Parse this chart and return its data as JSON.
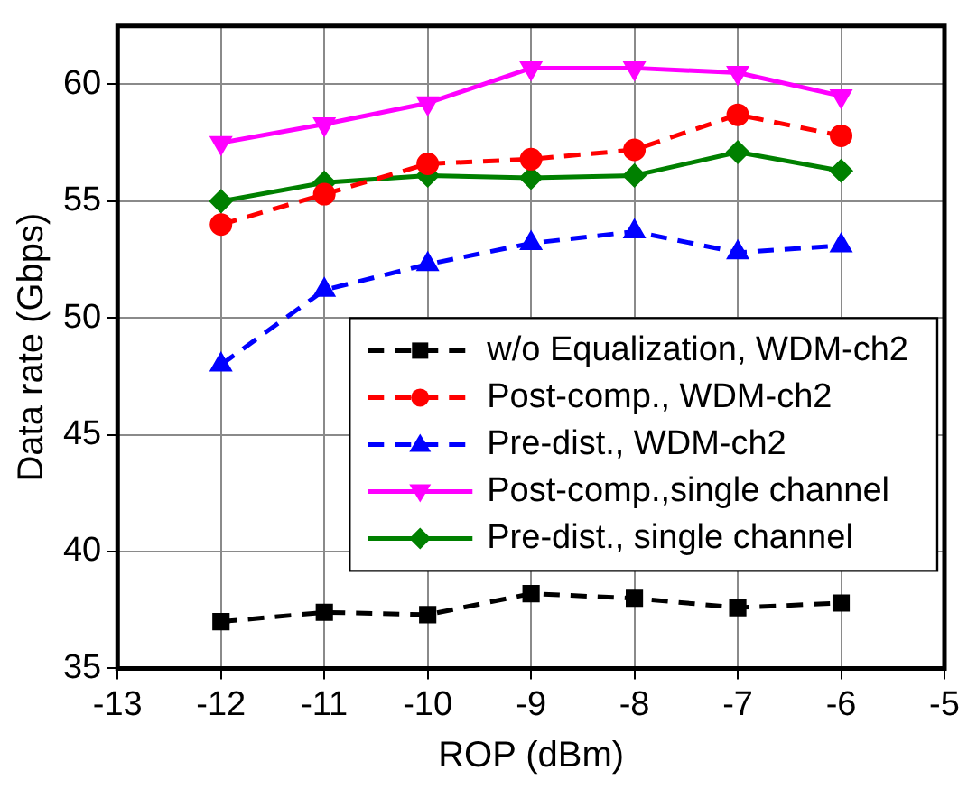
{
  "chart_data": {
    "type": "line",
    "xlabel": "ROP (dBm)",
    "ylabel": "Data rate (Gbps)",
    "x": [
      -12,
      -11,
      -10,
      -9,
      -8,
      -7,
      -6
    ],
    "xlim": [
      -13,
      -5
    ],
    "xticks": [
      -13,
      -12,
      -11,
      -10,
      -9,
      -8,
      -7,
      -6,
      -5
    ],
    "ylim": [
      35,
      62.5
    ],
    "yticks": [
      35,
      40,
      45,
      50,
      55,
      60
    ],
    "grid": true,
    "legend": "bottom right",
    "series": [
      {
        "name": "w/o Equalization, WDM-ch2",
        "color": "#000000",
        "marker": "square",
        "line_style": "dashed",
        "values": [
          37.0,
          37.4,
          37.3,
          38.2,
          38.0,
          37.6,
          37.8
        ]
      },
      {
        "name": "Post-comp., WDM-ch2",
        "color": "#ff0000",
        "marker": "circle",
        "line_style": "dashed",
        "values": [
          54.0,
          55.3,
          56.6,
          56.8,
          57.2,
          58.7,
          57.8
        ]
      },
      {
        "name": "Pre-dist., WDM-ch2",
        "color": "#0000ff",
        "marker": "triangle",
        "line_style": "dashed",
        "values": [
          48.0,
          51.2,
          52.3,
          53.2,
          53.7,
          52.8,
          53.1
        ]
      },
      {
        "name": "Post-comp.,single channel",
        "color": "#ff00ff",
        "marker": "triangle-down",
        "line_style": "solid",
        "values": [
          57.5,
          58.3,
          59.2,
          60.7,
          60.7,
          60.5,
          59.5
        ]
      },
      {
        "name": "Pre-dist., single channel",
        "color": "#008000",
        "marker": "diamond",
        "line_style": "solid",
        "values": [
          55.0,
          55.8,
          56.1,
          56.0,
          56.1,
          57.1,
          56.3
        ]
      }
    ]
  }
}
